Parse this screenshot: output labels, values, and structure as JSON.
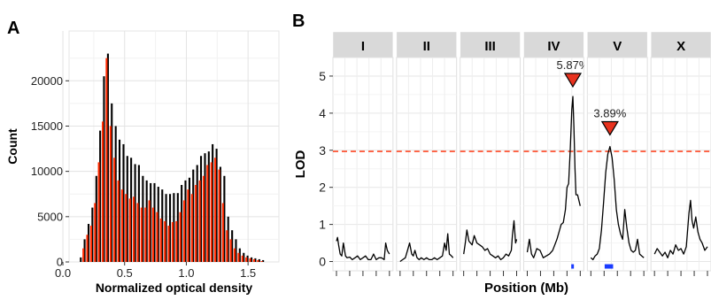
{
  "panel_a": {
    "letter": "A",
    "chart_data": {
      "type": "bar",
      "xlabel": "Normalized optical density",
      "ylabel": "Count",
      "xlim": [
        0.05,
        1.75
      ],
      "ylim": [
        0,
        25500
      ],
      "x_ticks": [
        "0.0",
        "0.5",
        "1.0",
        "1.5"
      ],
      "y_ticks": [
        "0",
        "5000",
        "10000",
        "15000",
        "20000"
      ],
      "grid": true,
      "bin_width": 0.0314,
      "series": [
        {
          "color": "#000000",
          "x": [
            0.145,
            0.176,
            0.208,
            0.239,
            0.271,
            0.302,
            0.333,
            0.365,
            0.396,
            0.428,
            0.459,
            0.491,
            0.522,
            0.553,
            0.585,
            0.616,
            0.648,
            0.679,
            0.711,
            0.742,
            0.773,
            0.805,
            0.836,
            0.868,
            0.899,
            0.931,
            0.962,
            0.993,
            1.025,
            1.056,
            1.088,
            1.119,
            1.151,
            1.182,
            1.213,
            1.245,
            1.276,
            1.308,
            1.339,
            1.371,
            1.402,
            1.433,
            1.465,
            1.496,
            1.528,
            1.559,
            1.591,
            1.622
          ],
          "values": [
            500,
            2500,
            4200,
            6000,
            9500,
            14500,
            20500,
            23000,
            17500,
            15000,
            13500,
            13000,
            11700,
            11500,
            10800,
            10700,
            9500,
            9000,
            8700,
            8700,
            8300,
            8000,
            7500,
            7500,
            7600,
            7600,
            8500,
            9000,
            9300,
            10200,
            10700,
            11700,
            12000,
            12200,
            13000,
            12500,
            10500,
            9500,
            5000,
            3500,
            2500,
            1500,
            1000,
            700,
            500,
            400,
            300,
            200
          ]
        },
        {
          "color": "#ff2a00",
          "x": [
            0.134,
            0.166,
            0.197,
            0.229,
            0.26,
            0.291,
            0.323,
            0.354,
            0.386,
            0.417,
            0.449,
            0.48,
            0.511,
            0.543,
            0.574,
            0.606,
            0.637,
            0.669,
            0.7,
            0.731,
            0.763,
            0.794,
            0.826,
            0.857,
            0.889,
            0.92,
            0.951,
            0.983,
            1.014,
            1.046,
            1.077,
            1.109,
            1.14,
            1.171,
            1.203,
            1.234,
            1.266,
            1.297,
            1.329,
            1.36,
            1.391,
            1.423,
            1.454,
            1.486,
            1.517,
            1.549,
            1.58,
            1.611
          ],
          "values": [
            0,
            1500,
            3000,
            4000,
            6500,
            11000,
            15500,
            22500,
            15000,
            11500,
            9000,
            8000,
            7500,
            7000,
            7200,
            6500,
            6000,
            6000,
            6800,
            6000,
            5500,
            4800,
            4500,
            4000,
            4400,
            4500,
            5500,
            6800,
            8000,
            7500,
            8500,
            9000,
            9500,
            10700,
            11000,
            11500,
            10200,
            6500,
            3500,
            2500,
            1500,
            1000,
            700,
            500,
            400,
            300,
            200,
            100
          ]
        }
      ]
    }
  },
  "panel_b": {
    "letter": "B",
    "chart_data": {
      "type": "line",
      "xlabel": "Position (Mb)",
      "ylabel": "LOD",
      "ylim": [
        -0.25,
        5.5
      ],
      "y_ticks": [
        "0",
        "1",
        "2",
        "3",
        "4",
        "5"
      ],
      "threshold": 2.97,
      "threshold_color": "#ff2a00",
      "grid": true,
      "line_color": "#000000",
      "facets": [
        {
          "label": "I",
          "x": [
            0,
            0.02,
            0.04,
            0.07,
            0.1,
            0.13,
            0.17,
            0.2,
            0.25,
            0.3,
            0.35,
            0.4,
            0.45,
            0.5,
            0.55,
            0.6,
            0.65,
            0.7,
            0.75,
            0.8,
            0.85,
            0.9,
            0.93,
            0.96,
            1
          ],
          "y": [
            0.55,
            0.65,
            0.45,
            0.2,
            0.15,
            0.5,
            0.15,
            0.1,
            0.12,
            0.05,
            0.1,
            0.15,
            0.05,
            0.1,
            0.15,
            0.05,
            0.05,
            0.2,
            0.05,
            0.1,
            0.1,
            0.05,
            0.5,
            0.3,
            0.2
          ],
          "peak": null
        },
        {
          "label": "II",
          "x": [
            0,
            0.05,
            0.1,
            0.15,
            0.18,
            0.22,
            0.25,
            0.28,
            0.32,
            0.36,
            0.4,
            0.45,
            0.5,
            0.55,
            0.6,
            0.65,
            0.7,
            0.75,
            0.8,
            0.84,
            0.87,
            0.9,
            0.93,
            0.97,
            1
          ],
          "y": [
            0,
            0.05,
            0.1,
            0.35,
            0.5,
            0.2,
            0.15,
            0.3,
            0.1,
            0.05,
            0.1,
            0.05,
            0.1,
            0.05,
            0.05,
            0.1,
            0.05,
            0.1,
            0.15,
            0.5,
            0.3,
            0.75,
            0.2,
            0.15,
            0.1
          ],
          "peak": null
        },
        {
          "label": "III",
          "x": [
            0,
            0.03,
            0.06,
            0.1,
            0.13,
            0.16,
            0.2,
            0.25,
            0.3,
            0.35,
            0.4,
            0.45,
            0.5,
            0.55,
            0.6,
            0.65,
            0.7,
            0.75,
            0.8,
            0.85,
            0.9,
            0.92,
            0.95,
            0.98,
            1
          ],
          "y": [
            0.2,
            0.5,
            0.85,
            0.55,
            0.5,
            0.45,
            0.7,
            0.5,
            0.45,
            0.4,
            0.3,
            0.35,
            0.2,
            0.15,
            0.1,
            0.15,
            0.05,
            0.1,
            0.2,
            0.15,
            0.3,
            0.7,
            1.1,
            0.5,
            0.6
          ],
          "peak": null
        },
        {
          "label": "IV",
          "x": [
            0,
            0.04,
            0.08,
            0.12,
            0.18,
            0.24,
            0.3,
            0.36,
            0.42,
            0.48,
            0.52,
            0.56,
            0.6,
            0.64,
            0.68,
            0.72,
            0.75,
            0.78,
            0.81,
            0.84,
            0.86,
            0.88,
            0.9,
            0.92,
            0.95,
            1
          ],
          "y": [
            0.25,
            0.6,
            0.2,
            0.1,
            0.35,
            0.3,
            0.1,
            0.15,
            0.2,
            0.3,
            0.45,
            0.6,
            0.8,
            1.0,
            1.05,
            1.4,
            2.0,
            2.1,
            3.0,
            4.1,
            4.45,
            3.6,
            2.5,
            1.8,
            1.8,
            1.5
          ],
          "peak": {
            "x": 0.86,
            "lod": 4.45,
            "label": "5.87%",
            "interval": [
              0.83,
              0.87
            ]
          }
        },
        {
          "label": "V",
          "x": [
            0,
            0.04,
            0.08,
            0.12,
            0.16,
            0.2,
            0.24,
            0.28,
            0.32,
            0.36,
            0.4,
            0.44,
            0.48,
            0.52,
            0.56,
            0.6,
            0.64,
            0.68,
            0.72,
            0.76,
            0.8,
            0.84,
            0.88,
            0.92,
            0.96,
            1
          ],
          "y": [
            0.1,
            0.05,
            0.15,
            0.2,
            0.35,
            0.85,
            1.6,
            2.4,
            2.9,
            3.1,
            2.8,
            2.2,
            1.4,
            1.0,
            0.75,
            0.6,
            1.4,
            0.9,
            0.5,
            0.3,
            0.25,
            0.3,
            0.6,
            0.2,
            0.15,
            0.1
          ],
          "peak": {
            "x": 0.36,
            "lod": 3.15,
            "label": "3.89%",
            "interval": [
              0.26,
              0.42
            ]
          }
        },
        {
          "label": "X",
          "x": [
            0,
            0.05,
            0.1,
            0.15,
            0.2,
            0.25,
            0.3,
            0.35,
            0.4,
            0.45,
            0.5,
            0.55,
            0.6,
            0.65,
            0.68,
            0.71,
            0.74,
            0.78,
            0.82,
            0.86,
            0.9,
            0.95,
            1
          ],
          "y": [
            0.2,
            0.35,
            0.25,
            0.15,
            0.25,
            0.1,
            0.3,
            0.2,
            0.45,
            0.3,
            0.35,
            0.2,
            0.4,
            1.3,
            1.65,
            1.1,
            0.9,
            1.2,
            0.8,
            0.6,
            0.5,
            0.3,
            0.4
          ],
          "peak": null
        }
      ]
    }
  }
}
